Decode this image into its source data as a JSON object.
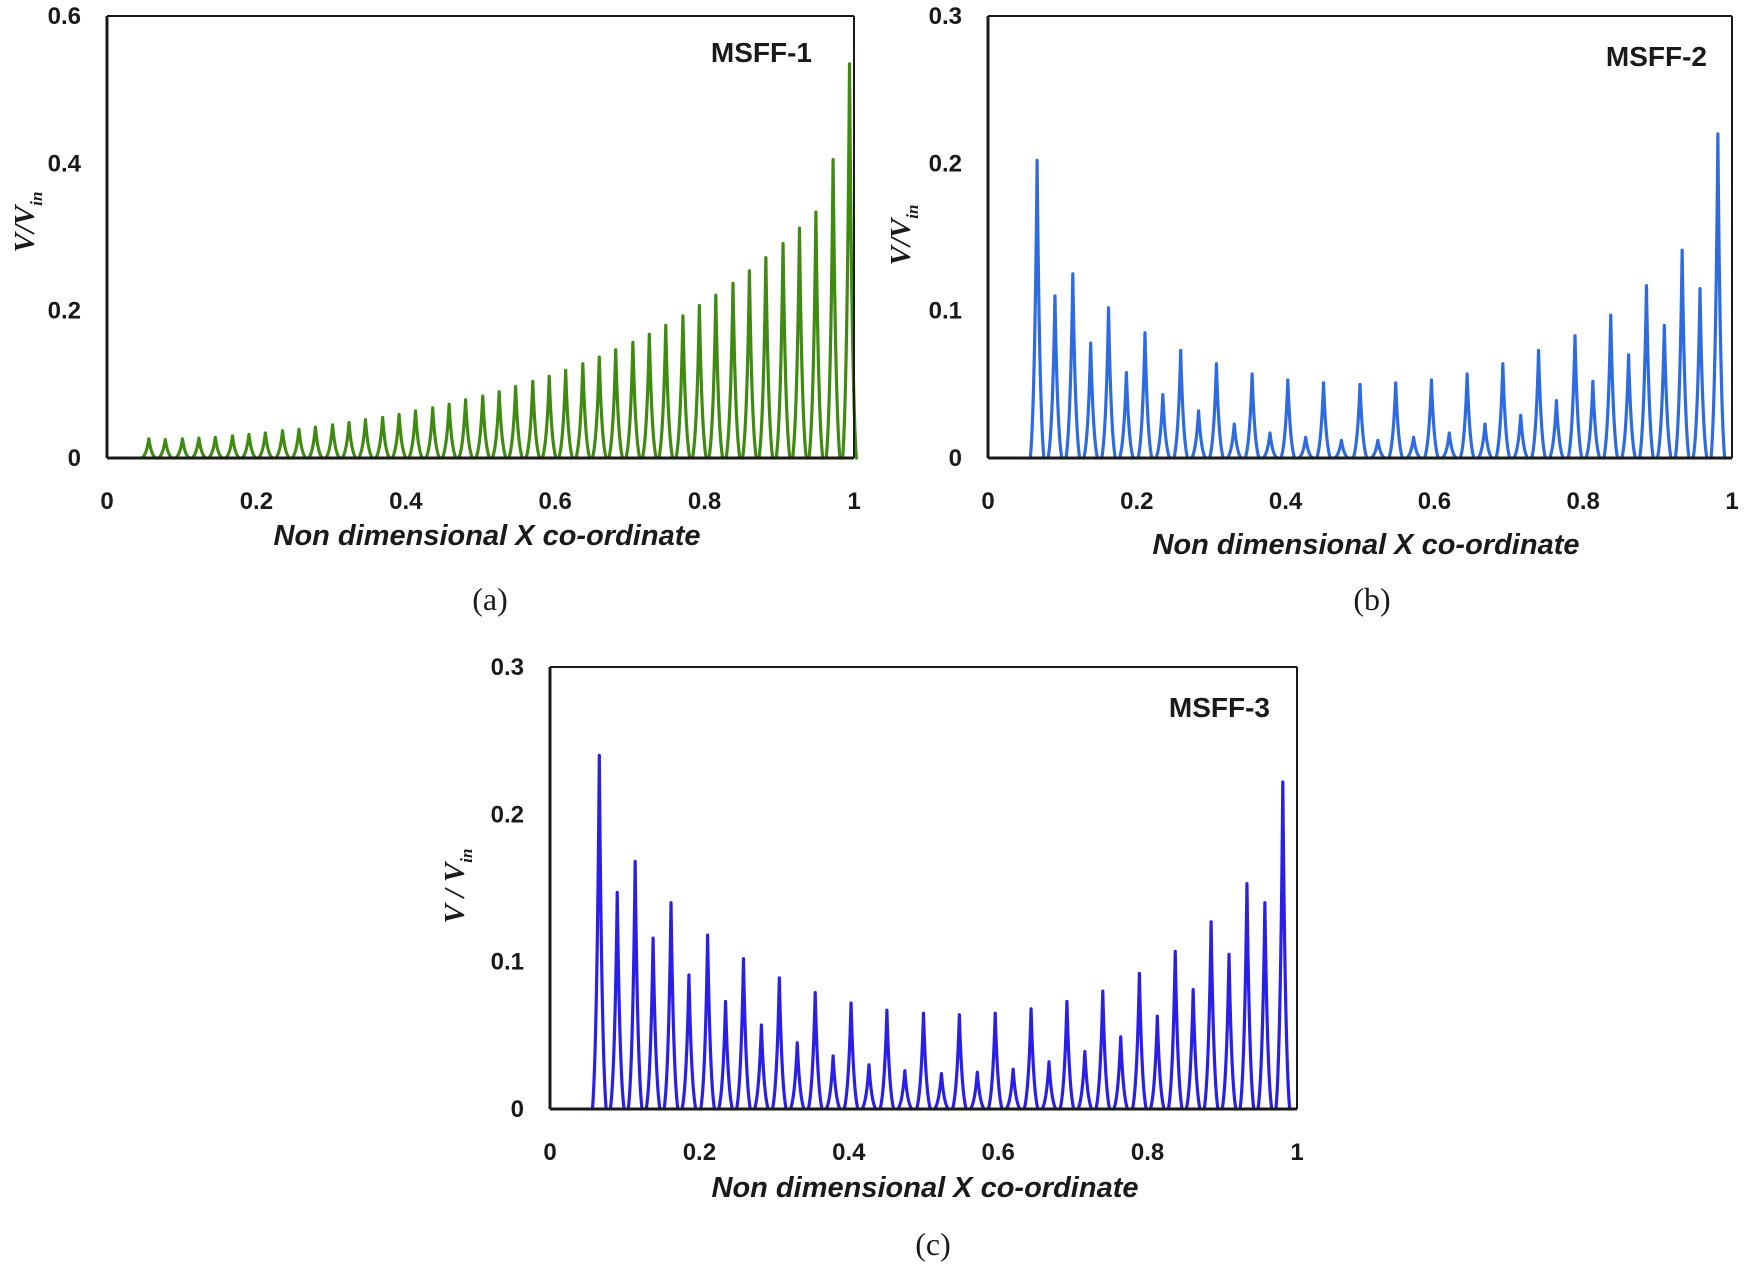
{
  "chart_data": [
    {
      "type": "line",
      "panel": "(a)",
      "title": "MSFF-1",
      "xlabel": "Non dimensional X co-ordinate",
      "ylabel": "V/V_in",
      "ylabel_main": "V/V",
      "ylabel_sub": "in",
      "xlim": [
        0,
        1
      ],
      "ylim": [
        0,
        0.6
      ],
      "xticks": [
        "0",
        "0.2",
        "0.4",
        "0.6",
        "0.8",
        "1"
      ],
      "yticks": [
        "0",
        "0.2",
        "0.4",
        "0.6"
      ],
      "grid": false,
      "color": "#3f8a10",
      "series": [
        {
          "x": [
            0.056,
            0.078,
            0.101,
            0.123,
            0.145,
            0.168,
            0.19,
            0.212,
            0.235,
            0.257,
            0.279,
            0.302,
            0.324,
            0.346,
            0.369,
            0.391,
            0.413,
            0.436,
            0.458,
            0.48,
            0.503,
            0.525,
            0.547,
            0.57,
            0.592,
            0.614,
            0.637,
            0.659,
            0.681,
            0.704,
            0.726,
            0.748,
            0.771,
            0.793,
            0.815,
            0.838,
            0.86,
            0.882,
            0.905,
            0.927,
            0.949,
            0.972,
            0.994
          ],
          "y": [
            0.026,
            0.025,
            0.026,
            0.027,
            0.028,
            0.03,
            0.032,
            0.034,
            0.037,
            0.039,
            0.042,
            0.045,
            0.048,
            0.052,
            0.055,
            0.059,
            0.064,
            0.068,
            0.073,
            0.079,
            0.084,
            0.09,
            0.097,
            0.104,
            0.111,
            0.119,
            0.128,
            0.137,
            0.147,
            0.157,
            0.168,
            0.18,
            0.193,
            0.207,
            0.221,
            0.237,
            0.254,
            0.272,
            0.291,
            0.312,
            0.334,
            0.405,
            0.535
          ]
        }
      ]
    },
    {
      "type": "line",
      "panel": "(b)",
      "title": "MSFF-2",
      "xlabel": "Non dimensional X co-ordinate",
      "ylabel": "V/V_in",
      "ylabel_main": "V/V",
      "ylabel_sub": "in",
      "xlim": [
        0,
        1
      ],
      "ylim": [
        0,
        0.3
      ],
      "xticks": [
        "0",
        "0.2",
        "0.4",
        "0.6",
        "0.8",
        "1"
      ],
      "yticks": [
        "0",
        "0.1",
        "0.2",
        "0.3"
      ],
      "grid": false,
      "color": "#2f6be0",
      "series": [
        {
          "x": [
            0.066,
            0.09,
            0.114,
            0.138,
            0.162,
            0.186,
            0.211,
            0.235,
            0.259,
            0.283,
            0.307,
            0.331,
            0.355,
            0.379,
            0.403,
            0.427,
            0.451,
            0.475,
            0.5,
            0.524,
            0.548,
            0.572,
            0.596,
            0.62,
            0.644,
            0.668,
            0.692,
            0.716,
            0.74,
            0.764,
            0.789,
            0.813,
            0.837,
            0.861,
            0.885,
            0.909,
            0.933,
            0.957,
            0.981
          ],
          "y": [
            0.202,
            0.11,
            0.125,
            0.078,
            0.102,
            0.058,
            0.085,
            0.043,
            0.073,
            0.032,
            0.064,
            0.023,
            0.057,
            0.017,
            0.053,
            0.014,
            0.051,
            0.012,
            0.05,
            0.012,
            0.051,
            0.014,
            0.053,
            0.017,
            0.057,
            0.023,
            0.064,
            0.029,
            0.073,
            0.039,
            0.083,
            0.052,
            0.097,
            0.07,
            0.117,
            0.09,
            0.141,
            0.115,
            0.22
          ]
        }
      ]
    },
    {
      "type": "line",
      "panel": "(c)",
      "title": "MSFF-3",
      "xlabel": "Non dimensional X co-ordinate",
      "ylabel": "V/V_in",
      "ylabel_main": "V / V",
      "ylabel_sub": "in",
      "xlim": [
        0,
        1
      ],
      "ylim": [
        0,
        0.3
      ],
      "xticks": [
        "0",
        "0.2",
        "0.4",
        "0.6",
        "0.8",
        "1"
      ],
      "yticks": [
        "0",
        "0.1",
        "0.2",
        "0.3"
      ],
      "grid": false,
      "color": "#2a1fe8",
      "series": [
        {
          "x": [
            0.066,
            0.09,
            0.114,
            0.138,
            0.162,
            0.186,
            0.211,
            0.235,
            0.259,
            0.283,
            0.307,
            0.331,
            0.355,
            0.379,
            0.403,
            0.427,
            0.451,
            0.475,
            0.5,
            0.524,
            0.548,
            0.572,
            0.596,
            0.62,
            0.644,
            0.668,
            0.692,
            0.716,
            0.74,
            0.764,
            0.789,
            0.813,
            0.837,
            0.861,
            0.885,
            0.909,
            0.933,
            0.957,
            0.981
          ],
          "y": [
            0.24,
            0.147,
            0.168,
            0.116,
            0.14,
            0.091,
            0.118,
            0.073,
            0.102,
            0.057,
            0.089,
            0.045,
            0.079,
            0.036,
            0.072,
            0.03,
            0.067,
            0.026,
            0.065,
            0.024,
            0.064,
            0.025,
            0.065,
            0.027,
            0.068,
            0.032,
            0.073,
            0.039,
            0.08,
            0.049,
            0.092,
            0.063,
            0.107,
            0.081,
            0.127,
            0.105,
            0.153,
            0.14,
            0.222
          ]
        }
      ]
    }
  ],
  "captions": {
    "a": "(a)",
    "b": "(b)",
    "c": "(c)"
  }
}
